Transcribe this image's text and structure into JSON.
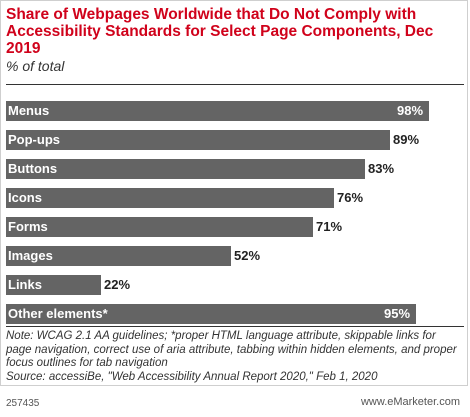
{
  "chart_data": {
    "type": "bar",
    "orientation": "horizontal",
    "title": "Share of Webpages Worldwide that Do Not Comply with Accessibility Standards for Select Page Components, Dec 2019",
    "subtitle": "% of total",
    "categories": [
      "Menus",
      "Pop-ups",
      "Buttons",
      "Icons",
      "Forms",
      "Images",
      "Links",
      "Other elements*"
    ],
    "values": [
      98,
      89,
      83,
      76,
      71,
      52,
      22,
      95
    ],
    "value_labels": [
      "98%",
      "89%",
      "83%",
      "76%",
      "71%",
      "52%",
      "22%",
      "95%"
    ],
    "xlim": [
      0,
      100
    ],
    "grid": false,
    "legend": "none",
    "bar_color": "#646464"
  },
  "note": "Note: WCAG 2.1 AA guidelines; *proper HTML language attribute, skippable links for page navigation, correct use of aria attribute, tabbing within hidden elements, and proper focus outlines for tab navigation",
  "source": "Source: accessiBe, \"Web Accessibility Annual Report 2020,\" Feb 1, 2020",
  "footer": {
    "chart_id": "257435",
    "brand": "www.eMarketer.com"
  },
  "colors": {
    "title": "#d0021b",
    "bar": "#646464"
  }
}
